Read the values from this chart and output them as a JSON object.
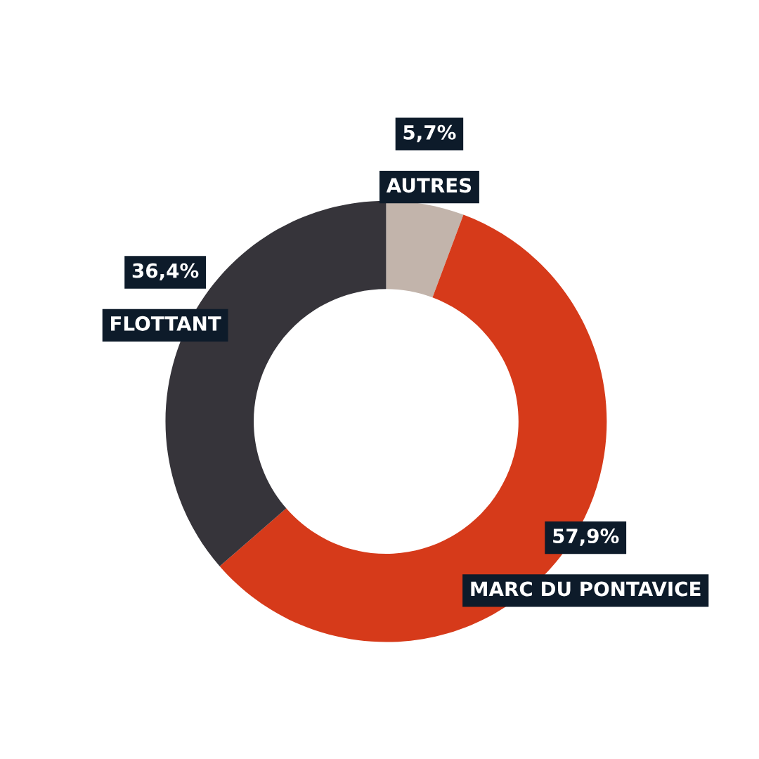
{
  "chart_data": {
    "type": "donut",
    "categories": [
      "AUTRES",
      "MARC DU PONTAVICE",
      "FLOTTANT"
    ],
    "values": [
      5.7,
      57.9,
      36.4
    ],
    "colors": [
      "#c2b4ab",
      "#d63a1a",
      "#36343a"
    ],
    "value_labels": [
      "5,7%",
      "57,9%",
      "36,4%"
    ],
    "legend": false
  }
}
